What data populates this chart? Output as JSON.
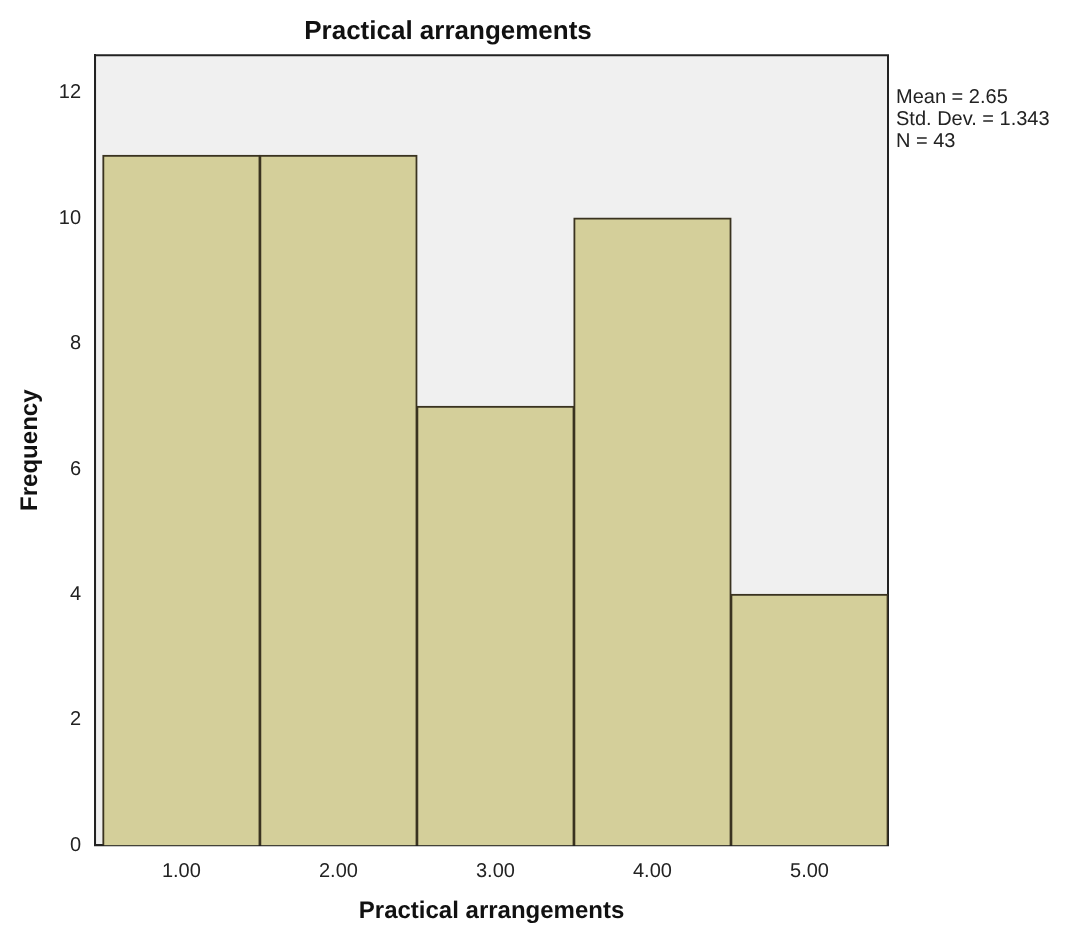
{
  "chart_data": {
    "type": "histogram",
    "title": "Practical arrangements",
    "xlabel": "Practical arrangements",
    "ylabel": "Frequency",
    "bins": [
      0.5,
      1.5,
      2.5,
      3.5,
      4.5,
      5.5
    ],
    "values": [
      11,
      11,
      7,
      10,
      4
    ],
    "color": "#d4cf9a",
    "xlim": [
      0.45,
      5.5
    ],
    "xticks": [
      {
        "value": 1,
        "label": "1.00"
      },
      {
        "value": 2,
        "label": "2.00"
      },
      {
        "value": 3,
        "label": "3.00"
      },
      {
        "value": 4,
        "label": "4.00"
      },
      {
        "value": 5,
        "label": "5.00"
      }
    ],
    "ylim": [
      0,
      12.6
    ],
    "yticks": [
      0,
      2,
      4,
      6,
      8,
      10,
      12
    ],
    "annotations": [
      "Mean = 2.65",
      "Std. Dev. = 1.343",
      "N = 43"
    ]
  }
}
